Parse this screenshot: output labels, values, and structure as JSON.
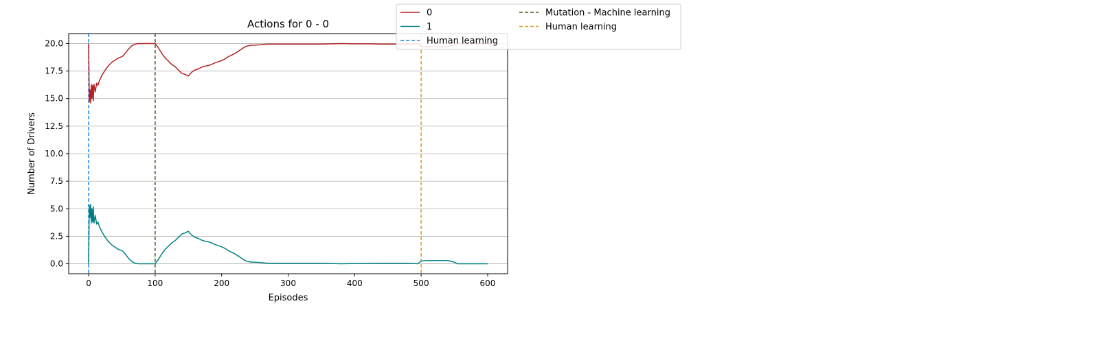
{
  "chart_data": {
    "type": "line",
    "title": "Actions for 0 - 0",
    "xlabel": "Episodes",
    "ylabel": "Number of Drivers",
    "xlim": [
      -30,
      630
    ],
    "ylim": [
      -0.9,
      20.9
    ],
    "xticks": [
      0,
      100,
      200,
      300,
      400,
      500,
      600
    ],
    "yticks": [
      0.0,
      2.5,
      5.0,
      7.5,
      10.0,
      12.5,
      15.0,
      17.5,
      20.0
    ],
    "xtick_labels": [
      "0",
      "100",
      "200",
      "300",
      "400",
      "500",
      "600"
    ],
    "ytick_labels": [
      "0.0",
      "2.5",
      "5.0",
      "7.5",
      "10.0",
      "12.5",
      "15.0",
      "17.5",
      "20.0"
    ],
    "grid": "horizontal",
    "legend_position": "top-right outside",
    "series": [
      {
        "name": "0",
        "color": "#b22222",
        "points": [
          [
            0,
            20
          ],
          [
            1,
            14.7
          ],
          [
            2,
            15.8
          ],
          [
            3,
            14.6
          ],
          [
            4,
            16.3
          ],
          [
            5,
            15.0
          ],
          [
            6,
            16.2
          ],
          [
            7,
            14.8
          ],
          [
            8,
            16.3
          ],
          [
            10,
            15.6
          ],
          [
            12,
            16.4
          ],
          [
            14,
            16.2
          ],
          [
            16,
            16.6
          ],
          [
            20,
            17.1
          ],
          [
            25,
            17.6
          ],
          [
            30,
            18.0
          ],
          [
            35,
            18.3
          ],
          [
            40,
            18.5
          ],
          [
            45,
            18.7
          ],
          [
            50,
            18.8
          ],
          [
            52,
            18.9
          ],
          [
            55,
            19.1
          ],
          [
            60,
            19.5
          ],
          [
            65,
            19.8
          ],
          [
            70,
            19.95
          ],
          [
            75,
            20.0
          ],
          [
            100,
            20.0
          ],
          [
            105,
            19.6
          ],
          [
            110,
            19.1
          ],
          [
            115,
            18.7
          ],
          [
            120,
            18.4
          ],
          [
            125,
            18.1
          ],
          [
            130,
            17.9
          ],
          [
            135,
            17.6
          ],
          [
            140,
            17.3
          ],
          [
            145,
            17.2
          ],
          [
            150,
            17.05
          ],
          [
            155,
            17.4
          ],
          [
            160,
            17.6
          ],
          [
            165,
            17.7
          ],
          [
            170,
            17.85
          ],
          [
            175,
            17.95
          ],
          [
            180,
            18.0
          ],
          [
            185,
            18.1
          ],
          [
            190,
            18.25
          ],
          [
            195,
            18.35
          ],
          [
            200,
            18.45
          ],
          [
            205,
            18.6
          ],
          [
            210,
            18.8
          ],
          [
            215,
            18.95
          ],
          [
            220,
            19.1
          ],
          [
            225,
            19.3
          ],
          [
            230,
            19.5
          ],
          [
            235,
            19.7
          ],
          [
            240,
            19.8
          ],
          [
            245,
            19.85
          ],
          [
            250,
            19.85
          ],
          [
            260,
            19.9
          ],
          [
            270,
            19.95
          ],
          [
            280,
            19.95
          ],
          [
            300,
            19.95
          ],
          [
            320,
            19.95
          ],
          [
            350,
            19.95
          ],
          [
            380,
            20.0
          ],
          [
            400,
            19.97
          ],
          [
            420,
            19.97
          ],
          [
            440,
            19.95
          ],
          [
            460,
            19.95
          ],
          [
            480,
            19.95
          ],
          [
            495,
            20.0
          ],
          [
            500,
            19.75
          ],
          [
            510,
            19.7
          ],
          [
            540,
            19.7
          ],
          [
            550,
            19.85
          ],
          [
            555,
            20.0
          ],
          [
            600,
            20.0
          ]
        ]
      },
      {
        "name": "1",
        "color": "#008080",
        "points": [
          [
            0,
            0
          ],
          [
            1,
            5.3
          ],
          [
            2,
            4.2
          ],
          [
            3,
            5.4
          ],
          [
            4,
            3.7
          ],
          [
            5,
            5.0
          ],
          [
            6,
            3.8
          ],
          [
            7,
            5.2
          ],
          [
            8,
            3.7
          ],
          [
            10,
            4.4
          ],
          [
            12,
            3.6
          ],
          [
            14,
            3.8
          ],
          [
            16,
            3.4
          ],
          [
            20,
            2.9
          ],
          [
            25,
            2.4
          ],
          [
            30,
            2.0
          ],
          [
            35,
            1.7
          ],
          [
            40,
            1.5
          ],
          [
            45,
            1.3
          ],
          [
            50,
            1.2
          ],
          [
            52,
            1.1
          ],
          [
            55,
            0.9
          ],
          [
            60,
            0.5
          ],
          [
            65,
            0.2
          ],
          [
            70,
            0.05
          ],
          [
            75,
            0
          ],
          [
            100,
            0
          ],
          [
            105,
            0.4
          ],
          [
            110,
            0.9
          ],
          [
            115,
            1.3
          ],
          [
            120,
            1.6
          ],
          [
            125,
            1.9
          ],
          [
            130,
            2.1
          ],
          [
            135,
            2.4
          ],
          [
            140,
            2.7
          ],
          [
            145,
            2.8
          ],
          [
            150,
            2.95
          ],
          [
            155,
            2.6
          ],
          [
            160,
            2.4
          ],
          [
            165,
            2.3
          ],
          [
            170,
            2.15
          ],
          [
            175,
            2.05
          ],
          [
            180,
            2.0
          ],
          [
            185,
            1.9
          ],
          [
            190,
            1.75
          ],
          [
            195,
            1.65
          ],
          [
            200,
            1.55
          ],
          [
            205,
            1.4
          ],
          [
            210,
            1.2
          ],
          [
            215,
            1.05
          ],
          [
            220,
            0.9
          ],
          [
            225,
            0.7
          ],
          [
            230,
            0.5
          ],
          [
            235,
            0.3
          ],
          [
            240,
            0.2
          ],
          [
            245,
            0.15
          ],
          [
            250,
            0.15
          ],
          [
            260,
            0.1
          ],
          [
            270,
            0.05
          ],
          [
            280,
            0.05
          ],
          [
            300,
            0.05
          ],
          [
            320,
            0.05
          ],
          [
            350,
            0.05
          ],
          [
            380,
            0.0
          ],
          [
            400,
            0.03
          ],
          [
            420,
            0.03
          ],
          [
            440,
            0.05
          ],
          [
            460,
            0.05
          ],
          [
            480,
            0.05
          ],
          [
            495,
            0.0
          ],
          [
            500,
            0.25
          ],
          [
            510,
            0.3
          ],
          [
            540,
            0.3
          ],
          [
            550,
            0.15
          ],
          [
            555,
            0.0
          ],
          [
            600,
            0.0
          ]
        ]
      }
    ],
    "vlines": [
      {
        "name": "Human learning",
        "x": 0,
        "color": "#1e88e5"
      },
      {
        "name": "Mutation - Machine learning",
        "x": 100,
        "color": "#3a5a1a"
      },
      {
        "name": "Human learning",
        "x": 500,
        "color": "#d4a017"
      }
    ]
  },
  "legend": {
    "col1": [
      {
        "label": "0",
        "color": "#b22222",
        "dashed": false
      },
      {
        "label": "1",
        "color": "#008080",
        "dashed": false
      },
      {
        "label": "Human learning",
        "color": "#1e88e5",
        "dashed": true
      }
    ],
    "col2": [
      {
        "label": "Mutation - Machine learning",
        "color": "#3a5a1a",
        "dashed": true
      },
      {
        "label": "Human learning",
        "color": "#d4a017",
        "dashed": true
      }
    ]
  }
}
